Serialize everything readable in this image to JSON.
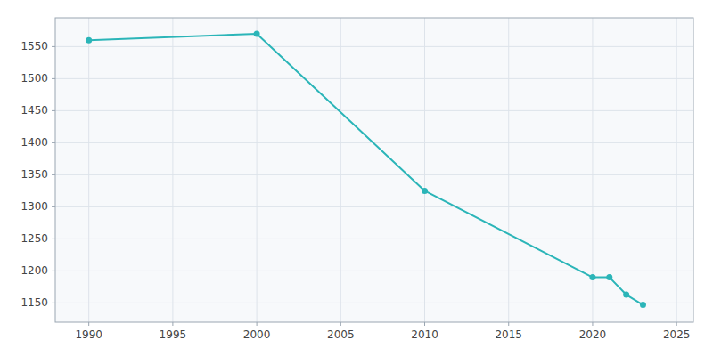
{
  "chart_data": {
    "type": "line",
    "x": [
      1990,
      2000,
      2010,
      2020,
      2021,
      2022,
      2023
    ],
    "values": [
      1560,
      1570,
      1325,
      1190,
      1190,
      1163,
      1147
    ],
    "color": "#2BB5B8",
    "marker": "circle",
    "xlim": [
      1988,
      2026
    ],
    "ylim": [
      1120,
      1595
    ],
    "xticks": [
      1990,
      1995,
      2000,
      2005,
      2010,
      2015,
      2020,
      2025
    ],
    "yticks": [
      1150,
      1200,
      1250,
      1300,
      1350,
      1400,
      1450,
      1500,
      1550
    ],
    "grid": true
  }
}
